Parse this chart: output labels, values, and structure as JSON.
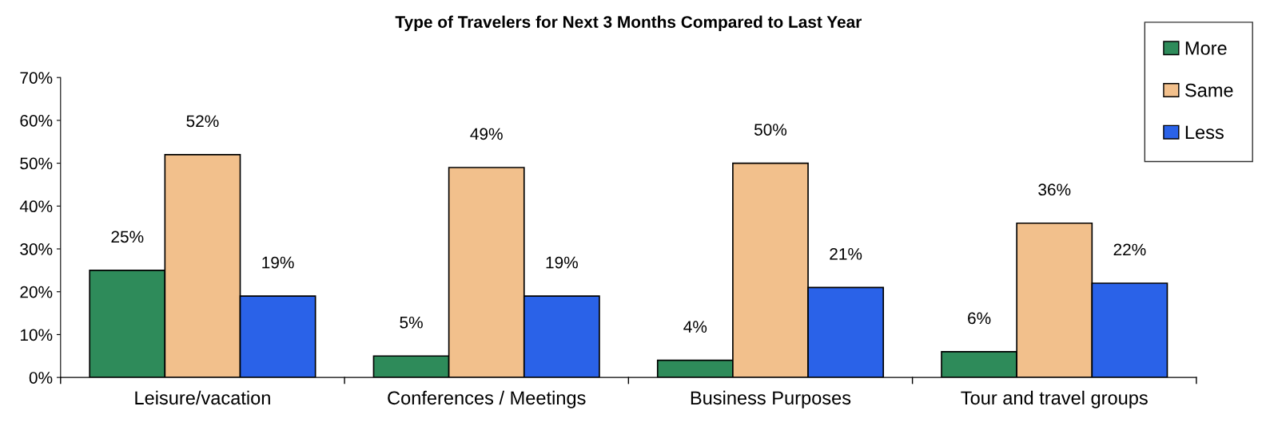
{
  "chart_data": {
    "type": "bar",
    "title": "Type of Travelers for Next 3 Months Compared to Last Year",
    "categories": [
      "Leisure/vacation",
      "Conferences / Meetings",
      "Business Purposes",
      "Tour and travel groups"
    ],
    "series": [
      {
        "name": "More",
        "color": "#2e8b5a",
        "values": [
          25,
          5,
          4,
          6
        ],
        "value_labels": [
          "25%",
          "5%",
          "4%",
          "6%"
        ]
      },
      {
        "name": "Same",
        "color": "#f2c08c",
        "values": [
          52,
          49,
          50,
          36
        ],
        "value_labels": [
          "52%",
          "49%",
          "50%",
          "36%"
        ]
      },
      {
        "name": "Less",
        "color": "#2a62e8",
        "values": [
          19,
          19,
          21,
          22
        ],
        "value_labels": [
          "19%",
          "19%",
          "21%",
          "22%"
        ]
      }
    ],
    "ylim": [
      0,
      70
    ],
    "yticks": [
      {
        "value": 0,
        "label": "0%"
      },
      {
        "value": 10,
        "label": "10%"
      },
      {
        "value": 20,
        "label": "20%"
      },
      {
        "value": 30,
        "label": "30%"
      },
      {
        "value": 40,
        "label": "40%"
      },
      {
        "value": 50,
        "label": "50%"
      },
      {
        "value": 60,
        "label": "60%"
      },
      {
        "value": 70,
        "label": "70%"
      }
    ],
    "grid": false,
    "legend": "top right"
  }
}
